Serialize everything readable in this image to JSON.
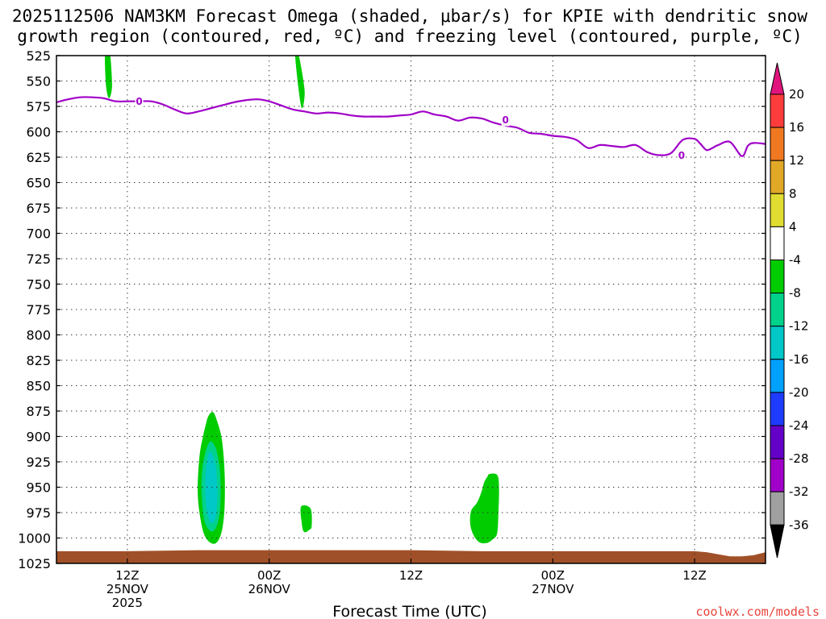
{
  "title": {
    "line1": "2025112506 NAM3KM Forecast Omega (shaded, μbar/s) for KPIE with dendritic snow",
    "line2": "growth region (contoured, red, ºC) and freezing level (contoured, purple, ºC)"
  },
  "credit": "coolwx.com/models",
  "chart_data": {
    "type": "area",
    "title": "2025112506 NAM3KM Forecast Omega (shaded, μbar/s) for KPIE with dendritic snow growth region (contoured, red, ºC) and freezing level (contoured, purple, ºC)",
    "xlabel": "Forecast Time (UTC)",
    "ylabel": "",
    "xlim_hours": [
      6,
      66
    ],
    "ylim_hpa": [
      1025,
      525
    ],
    "grid": true,
    "y_ticks": [
      525,
      550,
      575,
      600,
      625,
      650,
      675,
      700,
      725,
      750,
      775,
      800,
      825,
      850,
      875,
      900,
      925,
      950,
      975,
      1000,
      1025
    ],
    "x_ticks": [
      {
        "hour": 12,
        "l1": "12Z",
        "l2": "25NOV",
        "l3": "2025"
      },
      {
        "hour": 24,
        "l1": "00Z",
        "l2": "26NOV",
        "l3": ""
      },
      {
        "hour": 36,
        "l1": "12Z",
        "l2": "",
        "l3": ""
      },
      {
        "hour": 48,
        "l1": "00Z",
        "l2": "27NOV",
        "l3": ""
      },
      {
        "hour": 60,
        "l1": "12Z",
        "l2": "",
        "l3": ""
      }
    ],
    "colorbar": {
      "label_values": [
        20,
        16,
        12,
        8,
        4,
        -4,
        -8,
        -12,
        -16,
        -20,
        -24,
        -28,
        -32,
        -36
      ],
      "segment_colors": [
        "#ff3c3c",
        "#f07820",
        "#e1a828",
        "#e1dc32",
        "#ffffff",
        "#00cc00",
        "#00d28c",
        "#00c8c8",
        "#00a0ff",
        "#1e3cff",
        "#6400c8",
        "#a000c8",
        "#a0a0a0"
      ],
      "top_arrow_color": "#e0147c",
      "bottom_arrow_color": "#000000"
    },
    "freezing_level": {
      "label": "0",
      "color": "#a000c8",
      "hours": [
        6,
        7,
        8,
        9,
        10,
        11,
        12,
        13,
        14,
        15,
        16,
        17,
        18,
        19,
        20,
        21,
        22,
        23,
        24,
        25,
        26,
        27,
        28,
        29,
        30,
        31,
        32,
        33,
        34,
        35,
        36,
        37,
        38,
        39,
        40,
        41,
        42,
        43,
        44,
        45,
        46,
        47,
        48,
        49,
        50,
        51,
        52,
        53,
        54,
        55,
        56,
        57,
        58,
        59,
        60,
        60.5,
        61,
        61.5,
        62,
        63,
        64,
        64.5,
        65,
        66
      ],
      "pressure_hpa": [
        571,
        568,
        566,
        566,
        567,
        570,
        570,
        570,
        570,
        573,
        578,
        582,
        580,
        577,
        574,
        571,
        569,
        568,
        570,
        574,
        578,
        580,
        582,
        581,
        582,
        584,
        585,
        585,
        585,
        584,
        583,
        580,
        583,
        585,
        589,
        586,
        587,
        591,
        594,
        596,
        601,
        602,
        604,
        605,
        608,
        616,
        613,
        614,
        615,
        613,
        620,
        623,
        621,
        608,
        607,
        612,
        618,
        616,
        613,
        610,
        624,
        614,
        611,
        612
      ],
      "label_positions": [
        {
          "hour": 13,
          "p": 570
        },
        {
          "hour": 44,
          "p": 588
        },
        {
          "hour": 58.9,
          "p": 623
        }
      ]
    },
    "omega_regions": [
      {
        "level": -4,
        "hours": [
          10.35,
          10.55,
          10.7,
          10.45,
          10.2,
          10.1
        ],
        "pressure_hpa": [
          525,
          525,
          555,
          567,
          555,
          525
        ]
      },
      {
        "level": -4,
        "hours": [
          26.2,
          26.5,
          26.9,
          27.0,
          26.7
        ],
        "pressure_hpa": [
          525,
          525,
          550,
          565,
          575
        ]
      },
      {
        "level": -4,
        "hours": [
          18.85,
          19.25,
          19.6,
          19.95,
          20.15,
          20.25,
          20.2,
          19.95,
          19.5,
          18.95,
          18.45,
          18.1,
          17.95,
          18.0,
          18.15,
          18.4,
          18.6
        ],
        "pressure_hpa": [
          880,
          876,
          885,
          900,
          920,
          945,
          975,
          995,
          1005,
          1004,
          995,
          975,
          955,
          935,
          915,
          900,
          890
        ]
      },
      {
        "level": -8,
        "hours": [
          19.0,
          19.5,
          19.8,
          19.9,
          19.85,
          19.65,
          19.3,
          18.9,
          18.5,
          18.3,
          18.3,
          18.55
        ],
        "pressure_hpa": [
          905,
          912,
          930,
          950,
          970,
          985,
          993,
          992,
          982,
          960,
          938,
          918
        ]
      },
      {
        "level": -12,
        "hours": [
          18.95,
          19.4,
          19.6,
          19.6,
          19.4,
          19.05,
          18.75,
          18.6,
          18.65
        ],
        "pressure_hpa": [
          915,
          925,
          945,
          965,
          982,
          985,
          975,
          955,
          932
        ]
      },
      {
        "level": -4,
        "hours": [
          26.7,
          27.5,
          27.6,
          27.4,
          26.95,
          26.75
        ],
        "pressure_hpa": [
          969,
          971,
          988,
          992,
          994,
          985
        ]
      },
      {
        "level": -4,
        "hours": [
          42.65,
          43.3,
          43.45,
          43.4,
          43.3,
          42.95,
          42.4,
          41.75,
          41.25,
          41.0,
          41.1,
          41.6,
          41.95,
          42.2,
          42.45
        ],
        "pressure_hpa": [
          937,
          938,
          950,
          975,
          995,
          1001,
          1005,
          1004,
          996,
          985,
          973,
          965,
          955,
          945,
          940
        ]
      }
    ],
    "terrain": {
      "color": "#a05028",
      "hours": [
        6,
        12,
        18,
        24,
        30,
        36,
        42,
        48,
        54,
        58,
        60,
        61,
        62,
        63,
        64,
        65,
        66
      ],
      "pressure_hpa": [
        1013,
        1013,
        1012,
        1012,
        1012,
        1012,
        1013,
        1013,
        1013,
        1013,
        1013,
        1014,
        1016,
        1018,
        1018,
        1017,
        1014
      ]
    }
  }
}
